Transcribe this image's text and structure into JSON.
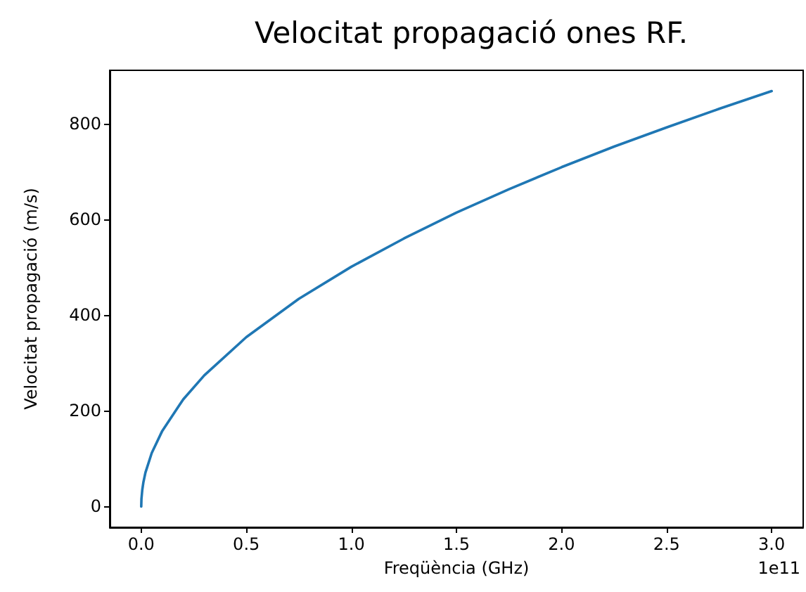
{
  "chart_data": {
    "type": "line",
    "title": "Velocitat propagació ones RF.",
    "xlabel": "Freqüència (GHz)",
    "ylabel": "Velocitat propagació (m/s)",
    "annotations": [
      "1e11"
    ],
    "x": [
      0,
      0.001,
      0.005,
      0.01,
      0.02,
      0.05,
      0.1,
      0.2,
      0.3,
      0.5,
      0.75,
      1,
      1.25,
      1.5,
      1.75,
      2,
      2.25,
      2.5,
      2.75,
      3
    ],
    "series": [
      {
        "color": "#1f77b4",
        "values": [
          0,
          16,
          35,
          50,
          71,
          112,
          158,
          224,
          274,
          354,
          434,
          501,
          560,
          614,
          663,
          709,
          752,
          792,
          831,
          868
        ]
      }
    ],
    "xlim": [
      -0.15,
      3.15
    ],
    "ylim": [
      -43.4,
      911.4
    ],
    "xticks": [
      {
        "value": 0,
        "label": "0.0"
      },
      {
        "value": 0.5,
        "label": "0.5"
      },
      {
        "value": 1,
        "label": "1.0"
      },
      {
        "value": 1.5,
        "label": "1.5"
      },
      {
        "value": 2,
        "label": "2.0"
      },
      {
        "value": 2.5,
        "label": "2.5"
      },
      {
        "value": 3,
        "label": "3.0"
      }
    ],
    "yticks": [
      0,
      200,
      400,
      600,
      800
    ],
    "marker": "none",
    "line_style": "solid"
  }
}
